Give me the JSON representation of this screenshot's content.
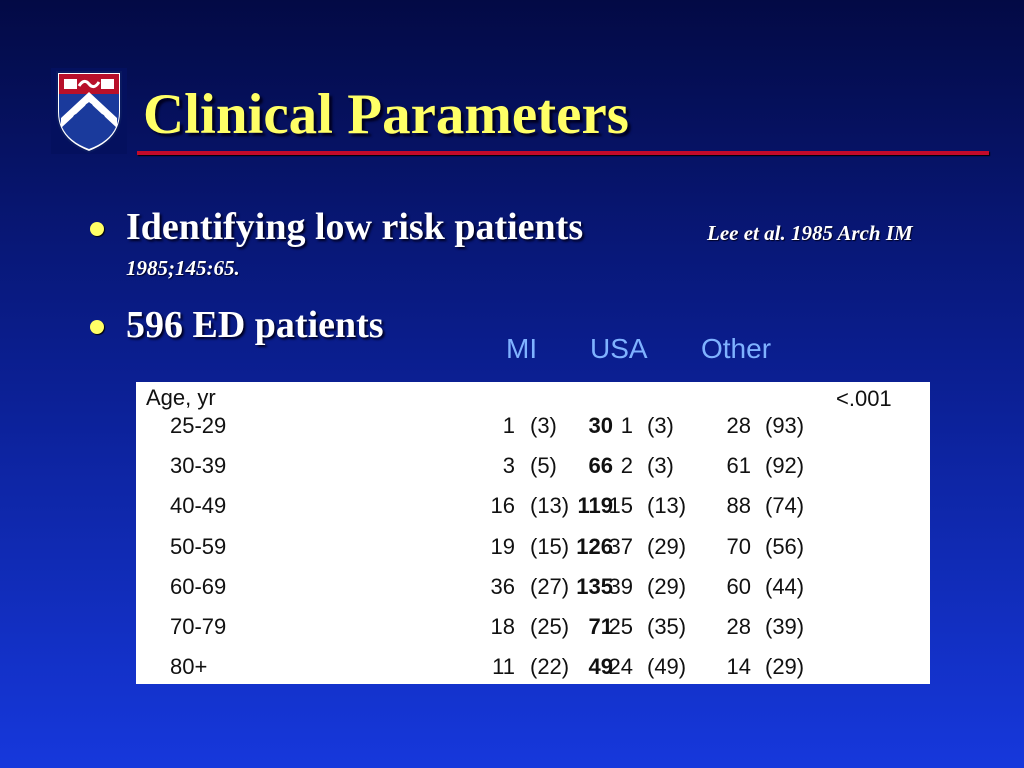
{
  "slide": {
    "title": "Clinical Parameters"
  },
  "bullets": [
    {
      "text": "Identifying low risk patients",
      "citation_line1": "Lee et al.  1985 Arch IM",
      "citation_line2": "1985;145:65."
    },
    {
      "text": "596 ED patients"
    }
  ],
  "column_headers": [
    "MI",
    "USA",
    "Other"
  ],
  "table": {
    "row_label_header": "Age, yr",
    "p_value": "<.001",
    "rows": [
      {
        "age": "25-29",
        "total": "30",
        "mi": "1",
        "mi_pct": "(3)",
        "usa": "1",
        "usa_pct": "(3)",
        "other": "28",
        "other_pct": "(93)"
      },
      {
        "age": "30-39",
        "total": "66",
        "mi": "3",
        "mi_pct": "(5)",
        "usa": "2",
        "usa_pct": "(3)",
        "other": "61",
        "other_pct": "(92)"
      },
      {
        "age": "40-49",
        "total": "119",
        "mi": "16",
        "mi_pct": "(13)",
        "usa": "15",
        "usa_pct": "(13)",
        "other": "88",
        "other_pct": "(74)"
      },
      {
        "age": "50-59",
        "total": "126",
        "mi": "19",
        "mi_pct": "(15)",
        "usa": "37",
        "usa_pct": "(29)",
        "other": "70",
        "other_pct": "(56)"
      },
      {
        "age": "60-69",
        "total": "135",
        "mi": "36",
        "mi_pct": "(27)",
        "usa": "39",
        "usa_pct": "(29)",
        "other": "60",
        "other_pct": "(44)"
      },
      {
        "age": "70-79",
        "total": "71",
        "mi": "18",
        "mi_pct": "(25)",
        "usa": "25",
        "usa_pct": "(35)",
        "other": "28",
        "other_pct": "(39)"
      },
      {
        "age": "80+",
        "total": "49",
        "mi": "11",
        "mi_pct": "(22)",
        "usa": "24",
        "usa_pct": "(49)",
        "other": "14",
        "other_pct": "(29)"
      }
    ]
  },
  "colors": {
    "title": "#ffff66",
    "rule": "#c20a2a",
    "column_header": "#7fb2ff",
    "background_top": "#030a45",
    "background_bottom": "#1638dc"
  },
  "icons": {
    "logo": "university-shield-logo"
  }
}
